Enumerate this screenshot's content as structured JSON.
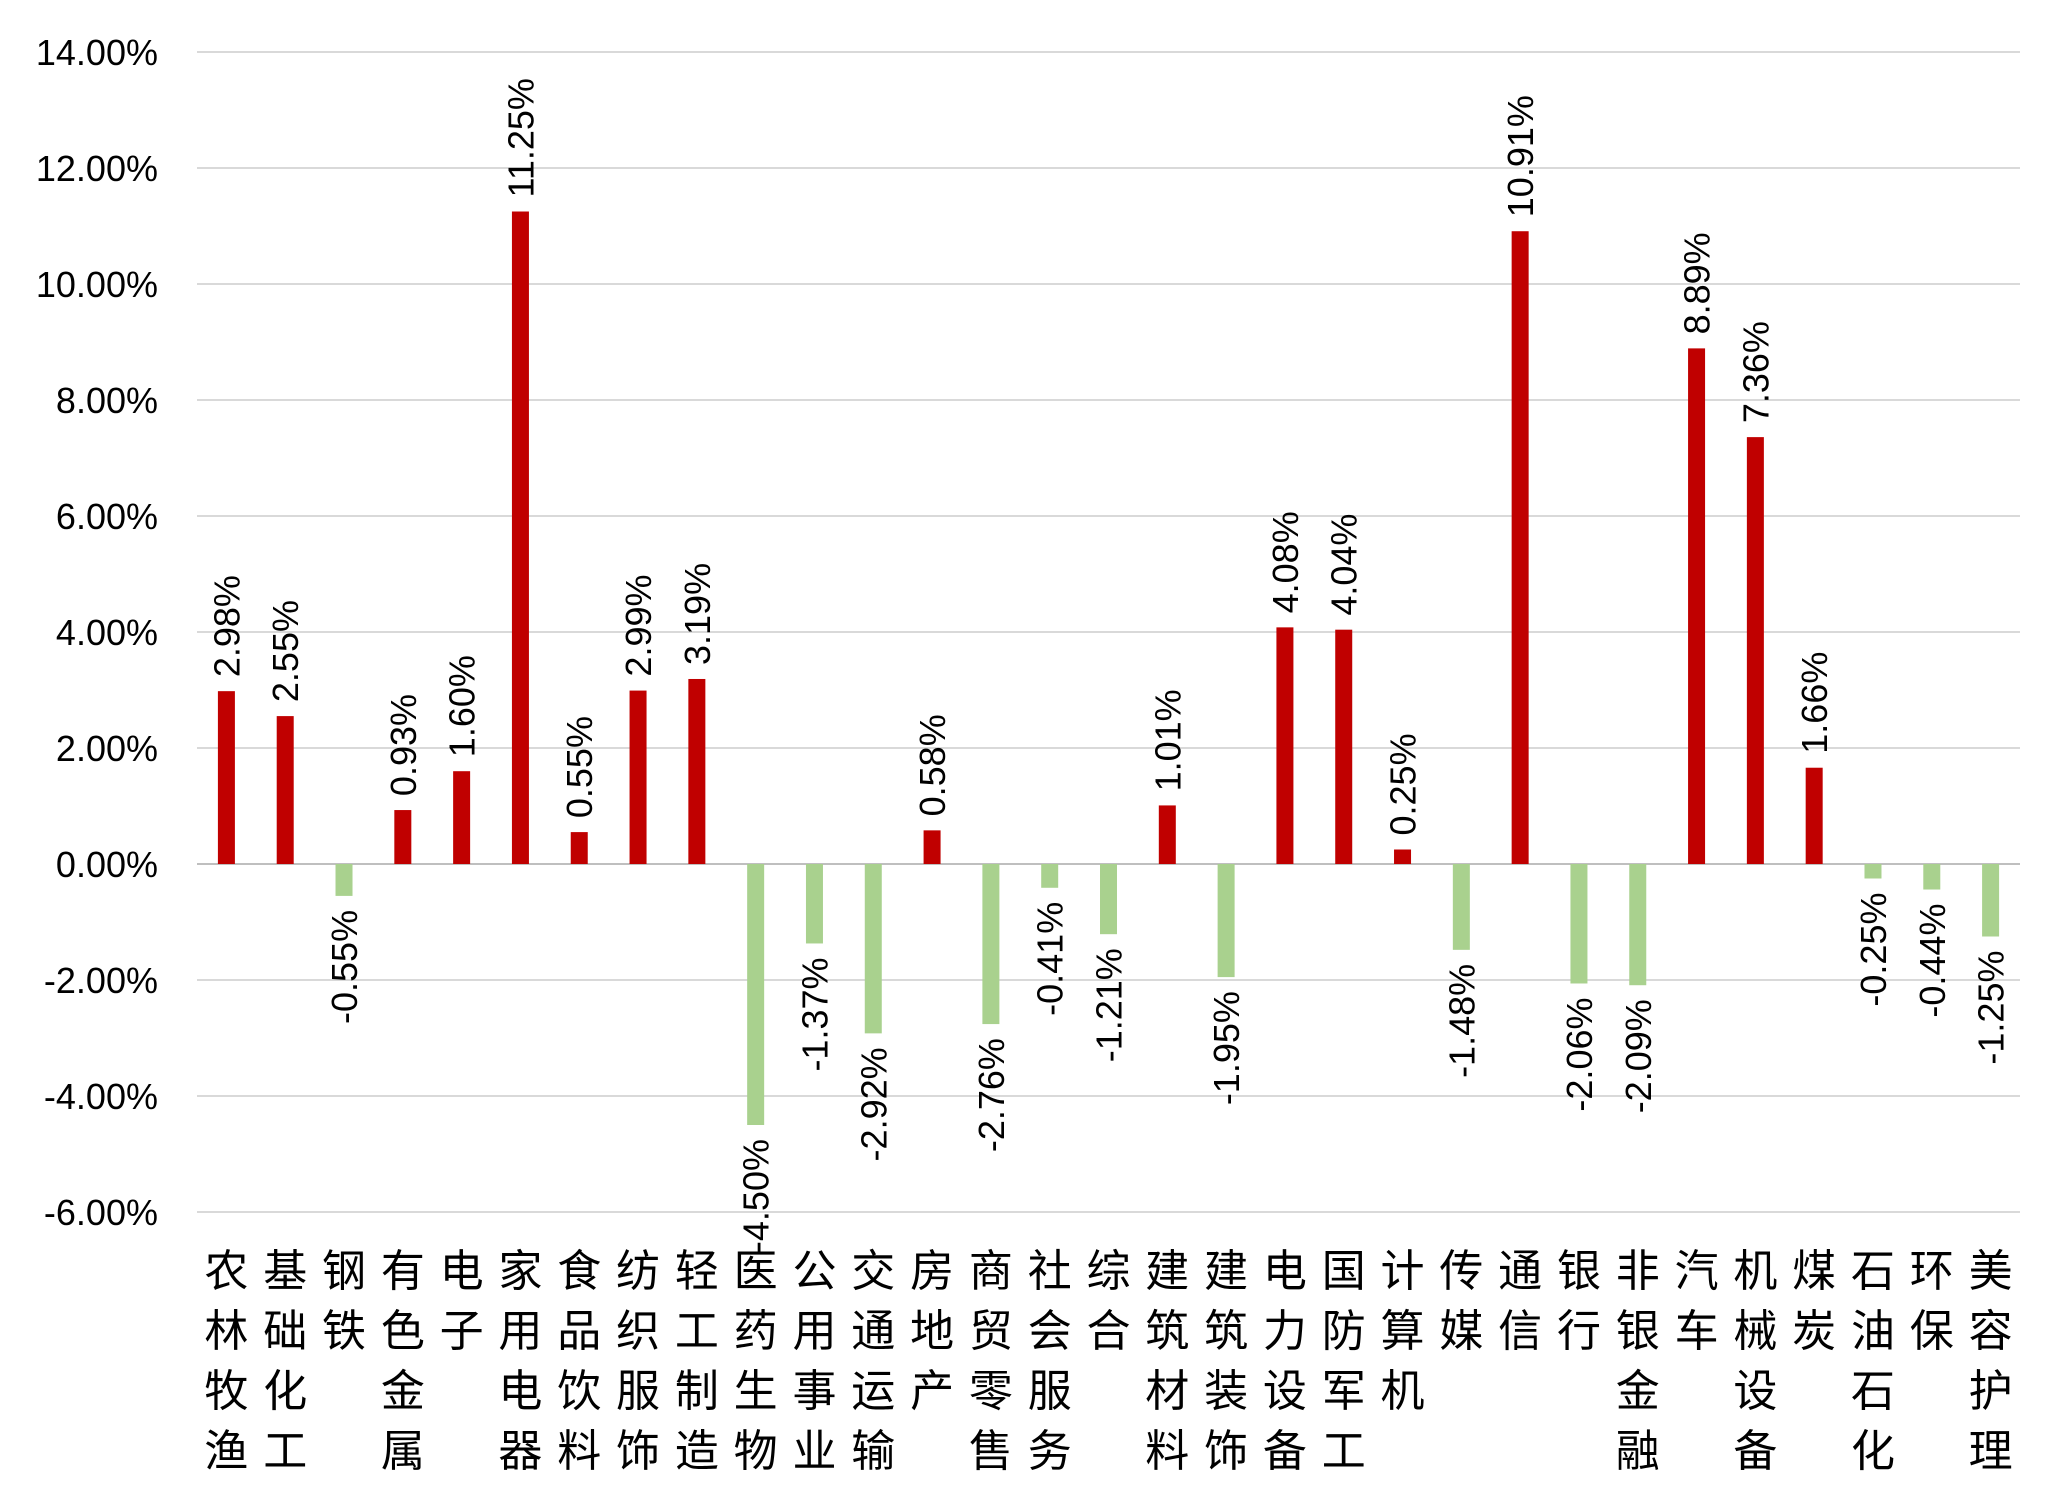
{
  "chart_data": {
    "type": "bar",
    "title": "",
    "xlabel": "",
    "ylabel": "",
    "ylim": [
      -6,
      14
    ],
    "yticks": [
      14,
      12,
      10,
      8,
      6,
      4,
      2,
      0,
      -2,
      -4,
      -6
    ],
    "ytick_labels": [
      "14.00%",
      "12.00%",
      "10.00%",
      "8.00%",
      "6.00%",
      "4.00%",
      "2.00%",
      "0.00%",
      "-2.00%",
      "-4.00%",
      "-6.00%"
    ],
    "grid": true,
    "legend": "none",
    "categories": [
      "农林牧渔",
      "基础化工",
      "钢铁",
      "有色金属",
      "电子",
      "家用电器",
      "食品饮料",
      "纺织服饰",
      "轻工制造",
      "医药生物",
      "公用事业",
      "交通运输",
      "房地产",
      "商贸零售",
      "社会服务",
      "综合",
      "建筑材料",
      "建筑装饰",
      "电力设备",
      "国防军工",
      "计算机",
      "传媒",
      "通信",
      "银行",
      "非银金融",
      "汽车",
      "机械设备",
      "煤炭",
      "石油石化",
      "环保",
      "美容护理"
    ],
    "values": [
      2.98,
      2.55,
      -0.55,
      0.93,
      1.6,
      11.25,
      0.55,
      2.99,
      3.19,
      -4.5,
      -1.37,
      -2.92,
      0.58,
      -2.76,
      -0.41,
      -1.21,
      1.01,
      -1.95,
      4.08,
      4.04,
      0.25,
      -1.48,
      10.91,
      -2.06,
      -2.09,
      8.89,
      7.36,
      1.66,
      -0.25,
      -0.44,
      -1.25
    ],
    "value_labels": [
      "2.98%",
      "2.55%",
      "-0.55%",
      "0.93%",
      "1.60%",
      "11.25%",
      "0.55%",
      "2.99%",
      "3.19%",
      "-4.50%",
      "-1.37%",
      "-2.92%",
      "0.58%",
      "-2.76%",
      "-0.41%",
      "-1.21%",
      "1.01%",
      "-1.95%",
      "4.08%",
      "4.04%",
      "0.25%",
      "-1.48%",
      "10.91%",
      "-2.06%",
      "-2.09%",
      "8.89%",
      "7.36%",
      "1.66%",
      "-0.25%",
      "-0.44%",
      "-1.25%"
    ],
    "colors": {
      "positive": "#C00000",
      "negative": "#A9D18E",
      "grid": "#D9D9D9",
      "axis": "#BFBFBF"
    }
  }
}
